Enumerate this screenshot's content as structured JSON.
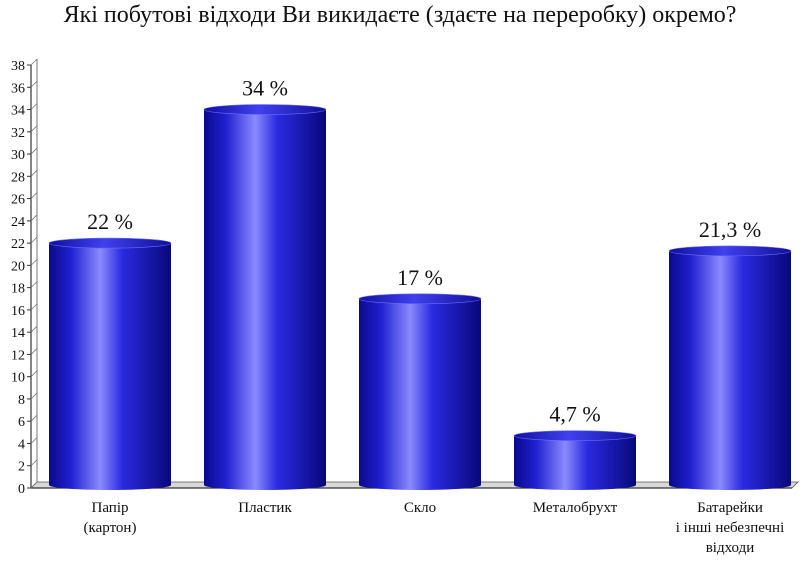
{
  "chart_data": {
    "type": "bar",
    "title": "Які побутові відходи Ви викидаєте (здаєте на переробку) окремо?",
    "categories": [
      [
        "Папір",
        "(картон)"
      ],
      [
        "Пластик"
      ],
      [
        "Скло"
      ],
      [
        "Металобрухт"
      ],
      [
        "Батарейки",
        "і інші небезпечні",
        "відходи"
      ]
    ],
    "values": [
      22,
      34,
      17,
      4.7,
      21.3
    ],
    "value_labels": [
      "22 %",
      "34 %",
      "17 %",
      "4,7 %",
      "21,3 %"
    ],
    "ylim": [
      0,
      38
    ],
    "yticks": [
      0,
      2,
      4,
      6,
      8,
      10,
      12,
      14,
      16,
      18,
      20,
      22,
      24,
      26,
      28,
      30,
      32,
      34,
      36,
      38
    ],
    "xlabel": "",
    "ylabel": "",
    "colors": {
      "bar": "#1f1fd6",
      "bar_light": "#8a8aff",
      "bar_dark": "#0a0a8c",
      "axis": "#333333",
      "floor": "#bdbdbd"
    }
  }
}
